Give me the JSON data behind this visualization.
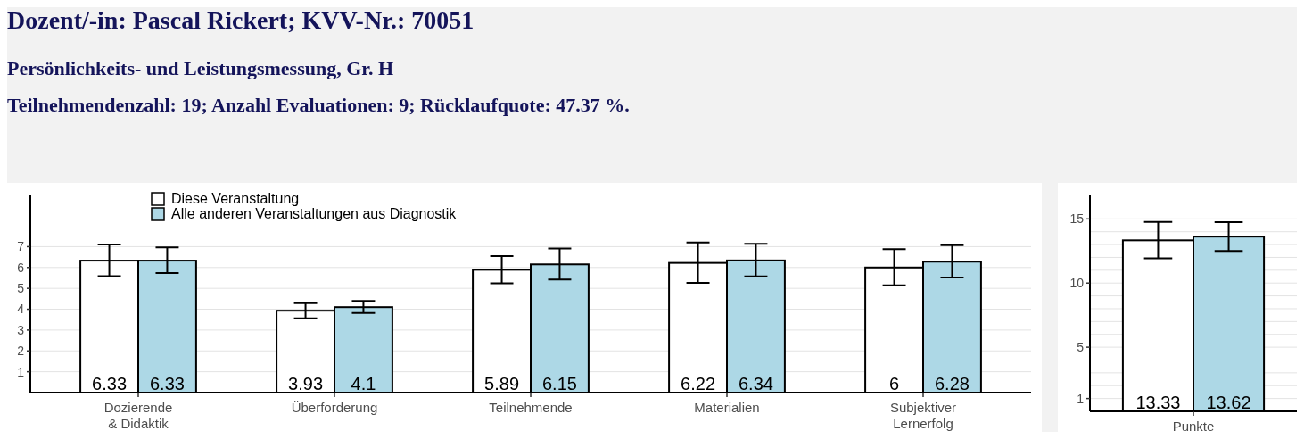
{
  "chart_data": [
    {
      "type": "bar",
      "title": "Dozent/-in: Pascal Rickert; KVV-Nr.: 70051",
      "subtitle": "Persönlichkeits- und Leistungsmessung, Gr. H",
      "annotations": [
        "Teilnehmendenzahl: 19; Anzahl Evaluationen: 9; Rücklaufquote: 47.37 %."
      ],
      "categories": [
        "Dozierende\n& Didaktik",
        "Überforderung",
        "Teilnehmende",
        "Materialien",
        "Subjektiver\nLernerfolg"
      ],
      "series": [
        {
          "name": "Diese Veranstaltung",
          "color": "#ffffff",
          "values": [
            6.33,
            3.93,
            5.89,
            6.22,
            6
          ],
          "errors": [
            [
              5.58,
              7.1
            ],
            [
              3.56,
              4.29
            ],
            [
              5.24,
              6.55
            ],
            [
              5.26,
              7.2
            ],
            [
              5.15,
              6.88
            ]
          ]
        },
        {
          "name": "Alle anderen Veranstaltungen aus Diagnostik",
          "color": "#add8e6",
          "values": [
            6.33,
            4.1,
            6.15,
            6.34,
            6.28
          ],
          "errors": [
            [
              5.73,
              6.96
            ],
            [
              3.82,
              4.4
            ],
            [
              5.42,
              6.91
            ],
            [
              5.57,
              7.14
            ],
            [
              5.52,
              7.07
            ]
          ]
        }
      ],
      "ylim": [
        0,
        9.5
      ],
      "yticks": [
        1,
        2,
        3,
        4,
        5,
        6,
        7
      ],
      "grid": "y",
      "legend": "top left",
      "data_labels": true
    },
    {
      "type": "bar",
      "categories": [
        "Punkte"
      ],
      "series": [
        {
          "color": "#ffffff",
          "values": [
            13.33
          ],
          "errors": [
            [
              11.92,
              14.77
            ]
          ]
        },
        {
          "color": "#add8e6",
          "values": [
            13.62
          ],
          "errors": [
            [
              12.5,
              14.75
            ]
          ]
        }
      ],
      "ylim": [
        0,
        16.9
      ],
      "yticks": [
        1,
        {
          "value": 2,
          "label": null
        },
        {
          "value": 3,
          "label": null
        },
        {
          "value": 4,
          "label": null
        },
        5,
        {
          "value": 6,
          "label": null
        },
        {
          "value": 7,
          "label": null
        },
        {
          "value": 8,
          "label": null
        },
        {
          "value": 9,
          "label": null
        },
        10,
        {
          "value": 11,
          "label": null
        },
        {
          "value": 12,
          "label": null
        },
        {
          "value": 13,
          "label": null
        },
        {
          "value": 14,
          "label": null
        },
        15
      ],
      "grid": "y",
      "data_labels": true
    }
  ]
}
